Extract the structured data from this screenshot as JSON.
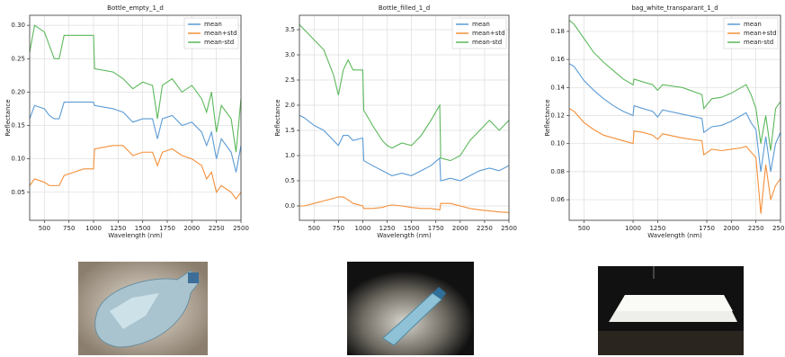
{
  "chart_data": [
    {
      "type": "line",
      "title": "Bottle_empty_1_d",
      "x_label": "Wavelength (nm)",
      "y_label": "Reflectance",
      "x": [
        350,
        400,
        500,
        550,
        600,
        650,
        700,
        800,
        900,
        1000,
        1010,
        1200,
        1300,
        1400,
        1500,
        1600,
        1650,
        1700,
        1800,
        1900,
        2000,
        2100,
        2150,
        2200,
        2250,
        2300,
        2400,
        2450,
        2500
      ],
      "series": [
        {
          "name": "mean",
          "color": "#5b9bd5",
          "values": [
            0.16,
            0.18,
            0.175,
            0.165,
            0.16,
            0.16,
            0.185,
            0.185,
            0.185,
            0.185,
            0.18,
            0.175,
            0.17,
            0.155,
            0.16,
            0.16,
            0.13,
            0.16,
            0.165,
            0.15,
            0.155,
            0.14,
            0.12,
            0.14,
            0.1,
            0.13,
            0.11,
            0.08,
            0.12
          ]
        },
        {
          "name": "mean+std",
          "color": "#f4903a",
          "values": [
            0.06,
            0.07,
            0.065,
            0.06,
            0.06,
            0.06,
            0.075,
            0.08,
            0.085,
            0.085,
            0.115,
            0.12,
            0.12,
            0.105,
            0.11,
            0.11,
            0.09,
            0.11,
            0.115,
            0.105,
            0.1,
            0.09,
            0.07,
            0.08,
            0.05,
            0.06,
            0.05,
            0.04,
            0.05
          ]
        },
        {
          "name": "mean-std",
          "color": "#5cb85c",
          "values": [
            0.26,
            0.3,
            0.29,
            0.27,
            0.25,
            0.25,
            0.285,
            0.285,
            0.285,
            0.285,
            0.235,
            0.23,
            0.22,
            0.205,
            0.215,
            0.21,
            0.16,
            0.21,
            0.22,
            0.2,
            0.21,
            0.19,
            0.17,
            0.2,
            0.14,
            0.18,
            0.16,
            0.11,
            0.19
          ]
        }
      ],
      "xlim": [
        350,
        2500
      ],
      "xticks": [
        500,
        750,
        1000,
        1250,
        1500,
        1750,
        2000,
        2250,
        2500
      ],
      "ylim": [
        0.008,
        0.315
      ],
      "yticks": [
        0.05,
        {
          "value": 0.1,
          "label": "0.10"
        },
        0.15,
        {
          "value": 0.2,
          "label": "0.20"
        },
        0.25,
        {
          "value": 0.3,
          "label": "0.30"
        }
      ],
      "grid": true,
      "legend": "upper right"
    },
    {
      "type": "line",
      "title": "Bottle_filled_1_d",
      "x_label": "Wavelength (nm)",
      "y_label": "Reflectance",
      "x": [
        350,
        400,
        500,
        600,
        700,
        750,
        800,
        850,
        900,
        1000,
        1010,
        1100,
        1200,
        1250,
        1300,
        1400,
        1500,
        1600,
        1700,
        1790,
        1800,
        1900,
        2000,
        2100,
        2200,
        2300,
        2400,
        2500
      ],
      "series": [
        {
          "name": "mean",
          "color": "#5b9bd5",
          "values": [
            1.8,
            1.75,
            1.6,
            1.5,
            1.3,
            1.2,
            1.4,
            1.4,
            1.3,
            1.35,
            0.9,
            0.8,
            0.7,
            0.65,
            0.6,
            0.65,
            0.6,
            0.7,
            0.8,
            0.95,
            0.5,
            0.55,
            0.5,
            0.6,
            0.7,
            0.75,
            0.7,
            0.8
          ]
        },
        {
          "name": "mean+std",
          "color": "#f4903a",
          "values": [
            0,
            0,
            0.05,
            0.1,
            0.15,
            0.18,
            0.18,
            0.12,
            0.05,
            0,
            -0.05,
            -0.05,
            -0.03,
            0,
            0.02,
            0,
            -0.03,
            -0.05,
            -0.05,
            -0.08,
            0.05,
            0.05,
            0,
            -0.05,
            -0.08,
            -0.1,
            -0.12,
            -0.13
          ]
        },
        {
          "name": "mean-std",
          "color": "#5cb85c",
          "values": [
            3.6,
            3.5,
            3.3,
            3.1,
            2.6,
            2.2,
            2.7,
            2.9,
            2.7,
            2.7,
            1.9,
            1.6,
            1.3,
            1.2,
            1.15,
            1.25,
            1.2,
            1.4,
            1.7,
            2,
            0.95,
            0.9,
            1,
            1.3,
            1.5,
            1.7,
            1.5,
            1.7
          ]
        }
      ],
      "xlim": [
        350,
        2500
      ],
      "xticks": [
        500,
        750,
        1000,
        1250,
        1500,
        1750,
        2000,
        2250,
        2500
      ],
      "ylim": [
        -0.286,
        3.786
      ],
      "yticks": [
        {
          "value": 0,
          "label": "0.0"
        },
        0.5,
        {
          "value": 1,
          "label": "1.0"
        },
        1.5,
        {
          "value": 2,
          "label": "2.0"
        },
        2.5,
        {
          "value": 3,
          "label": "3.0"
        },
        3.5
      ],
      "grid": true,
      "legend": "upper right"
    },
    {
      "type": "line",
      "title": "bag_white_transparant_1_d",
      "x_label": "Wavelength (nm)",
      "y_label": "Reflectance",
      "x": [
        350,
        400,
        500,
        600,
        700,
        800,
        900,
        1000,
        1010,
        1100,
        1200,
        1250,
        1300,
        1500,
        1700,
        1720,
        1800,
        1900,
        2000,
        2100,
        2150,
        2200,
        2250,
        2300,
        2350,
        2400,
        2450,
        2500
      ],
      "series": [
        {
          "name": "mean",
          "color": "#5b9bd5",
          "values": [
            0.157,
            0.155,
            0.145,
            0.138,
            0.132,
            0.127,
            0.123,
            0.12,
            0.127,
            0.125,
            0.123,
            0.119,
            0.124,
            0.121,
            0.118,
            0.108,
            0.112,
            0.113,
            0.116,
            0.12,
            0.122,
            0.115,
            0.11,
            0.08,
            0.105,
            0.08,
            0.1,
            0.108
          ]
        },
        {
          "name": "mean+std",
          "color": "#f4903a",
          "values": [
            0.125,
            0.123,
            0.115,
            0.11,
            0.106,
            0.104,
            0.102,
            0.1,
            0.109,
            0.108,
            0.106,
            0.103,
            0.107,
            0.104,
            0.102,
            0.092,
            0.096,
            0.095,
            0.096,
            0.097,
            0.098,
            0.094,
            0.09,
            0.05,
            0.085,
            0.06,
            0.07,
            0.075
          ]
        },
        {
          "name": "mean-std",
          "color": "#5cb85c",
          "values": [
            0.188,
            0.185,
            0.175,
            0.165,
            0.158,
            0.152,
            0.146,
            0.142,
            0.146,
            0.144,
            0.142,
            0.138,
            0.142,
            0.14,
            0.135,
            0.125,
            0.132,
            0.133,
            0.136,
            0.14,
            0.142,
            0.135,
            0.125,
            0.1,
            0.12,
            0.095,
            0.125,
            0.13
          ]
        }
      ],
      "xlim": [
        350,
        2500
      ],
      "xticks": [
        500,
        1000,
        1250,
        1750,
        2000,
        2250,
        2500
      ],
      "ylim": [
        0.0453,
        0.1915
      ],
      "yticks": [
        0.06,
        0.08,
        {
          "value": 0.1,
          "label": "0.10"
        },
        0.12,
        0.14,
        0.16,
        0.18
      ],
      "grid": true,
      "legend": "upper right"
    }
  ]
}
